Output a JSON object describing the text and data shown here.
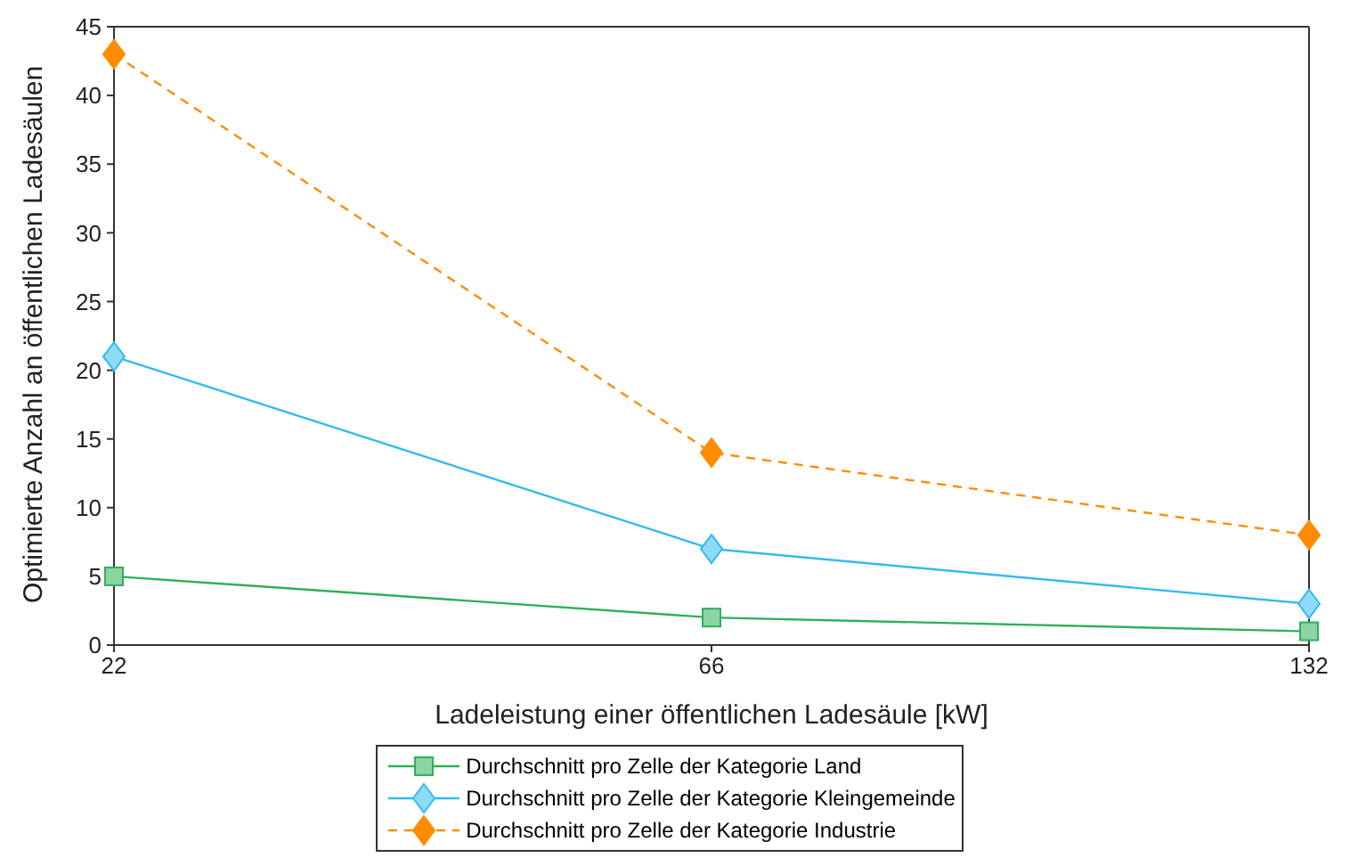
{
  "chart_data": {
    "type": "line",
    "xlabel": "Ladeleistung einer öffentlichen Ladesäule [kW]",
    "ylabel": "Optimierte Anzahl an öffentlichen Ladesäulen",
    "categories": [
      "22",
      "66",
      "132"
    ],
    "ylim": [
      0,
      45
    ],
    "yticks": [
      0,
      5,
      10,
      15,
      20,
      25,
      30,
      35,
      40,
      45
    ],
    "grid": false,
    "legend": "bottom",
    "series": [
      {
        "name": "Durchschnitt pro Zelle der Kategorie Land",
        "color": "#2db05a",
        "marker": "square",
        "line_style": "solid",
        "values": [
          5,
          2,
          1
        ]
      },
      {
        "name": "Durchschnitt pro Zelle der Kategorie Kleingemeinde",
        "color": "#33bbee",
        "marker": "diamond",
        "line_style": "solid",
        "values": [
          21,
          7,
          3
        ]
      },
      {
        "name": "Durchschnitt pro Zelle der Kategorie Industrie",
        "color": "#ff8c00",
        "marker": "diamond",
        "line_style": "dashed",
        "values": [
          43,
          14,
          8
        ]
      }
    ]
  }
}
